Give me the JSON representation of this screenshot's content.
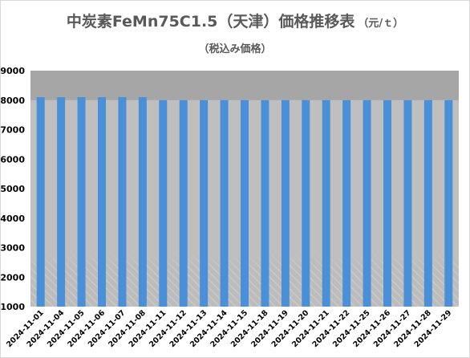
{
  "header": {
    "title": "中炭素FeMn75C1.5（天津）価格推移表",
    "unit": "（元/ｔ）",
    "subtitle": "（税込み価格）"
  },
  "colors": {
    "bar": "#4a90d9",
    "plot_background": "#bfbfbf",
    "top_band": "#a6a6a6"
  },
  "chart_data": {
    "type": "bar",
    "title": "中炭素FeMn75C1.5（天津）価格推移表",
    "subtitle": "（税込み価格）",
    "unit": "（元/ｔ）",
    "categories": [
      "2024-11-01",
      "2024-11-04",
      "2024-11-05",
      "2024-11-06",
      "2024-11-07",
      "2024-11-08",
      "2024-11-11",
      "2024-11-12",
      "2024-11-13",
      "2024-11-14",
      "2024-11-15",
      "2024-11-18",
      "2024-11-19",
      "2024-11-20",
      "2024-11-21",
      "2024-11-22",
      "2024-11-25",
      "2024-11-26",
      "2024-11-27",
      "2024-11-28",
      "2024-11-29"
    ],
    "values": [
      8100,
      8100,
      8100,
      8100,
      8100,
      8100,
      8000,
      8000,
      8000,
      8000,
      8000,
      8000,
      8000,
      8000,
      8000,
      8000,
      8000,
      8000,
      8000,
      8000,
      8000
    ],
    "ylim": [
      1000,
      9000
    ],
    "yticks": [
      1000,
      2000,
      3000,
      4000,
      5000,
      6000,
      7000,
      8000,
      9000
    ],
    "grid": false,
    "legend": "none"
  }
}
